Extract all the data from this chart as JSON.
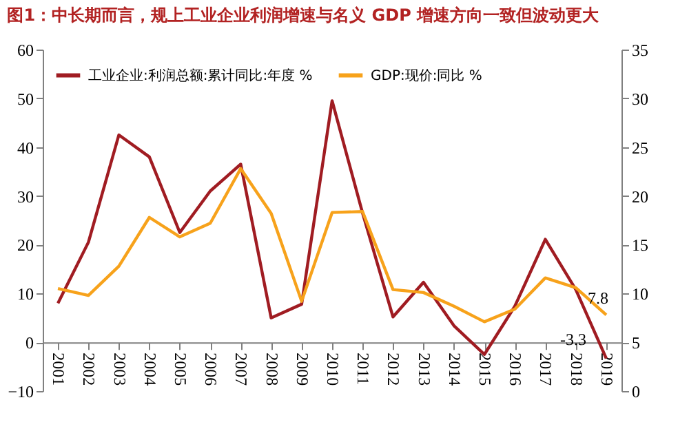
{
  "chart_data": {
    "type": "line",
    "title": "图1：中长期而言，规上工业企业利润增速与名义 GDP 增速方向一致但波动更大",
    "categories": [
      "2001",
      "2002",
      "2003",
      "2004",
      "2005",
      "2006",
      "2007",
      "2008",
      "2009",
      "2010",
      "2011",
      "2012",
      "2013",
      "2014",
      "2015",
      "2016",
      "2017",
      "2018",
      "2019"
    ],
    "series": [
      {
        "name": "工业企业:利润总额:累计同比:年度 %",
        "color": "#a01c22",
        "values": [
          8,
          20.5,
          42.5,
          38,
          22.5,
          31,
          36.5,
          5,
          7.8,
          49.5,
          26.5,
          5.2,
          12.3,
          3.4,
          -2.5,
          7.4,
          21.1,
          10.8,
          -3.3
        ],
        "value_labels": [
          null,
          null,
          null,
          null,
          null,
          null,
          null,
          null,
          null,
          null,
          null,
          null,
          null,
          null,
          null,
          null,
          null,
          null,
          "-3.3"
        ]
      },
      {
        "name": "GDP:现价:同比 %",
        "color": "#f7a21b",
        "axis": "y2",
        "values": [
          10.5,
          9.8,
          12.8,
          17.8,
          15.8,
          17.2,
          22.8,
          18.2,
          9.2,
          18.3,
          18.4,
          10.4,
          10.1,
          8.7,
          7.1,
          8.4,
          11.6,
          10.6,
          7.8
        ],
        "value_labels": [
          null,
          null,
          null,
          null,
          null,
          null,
          null,
          null,
          null,
          null,
          null,
          null,
          null,
          null,
          null,
          null,
          null,
          null,
          "7.8"
        ]
      }
    ],
    "ylim": [
      -10,
      60
    ],
    "yticks": [
      -10,
      0,
      10,
      20,
      30,
      40,
      50,
      60
    ],
    "y2lim": [
      0,
      35
    ],
    "y2ticks": [
      0,
      5,
      10,
      15,
      20,
      25,
      30,
      35
    ],
    "grid": false,
    "legend": "top left"
  }
}
